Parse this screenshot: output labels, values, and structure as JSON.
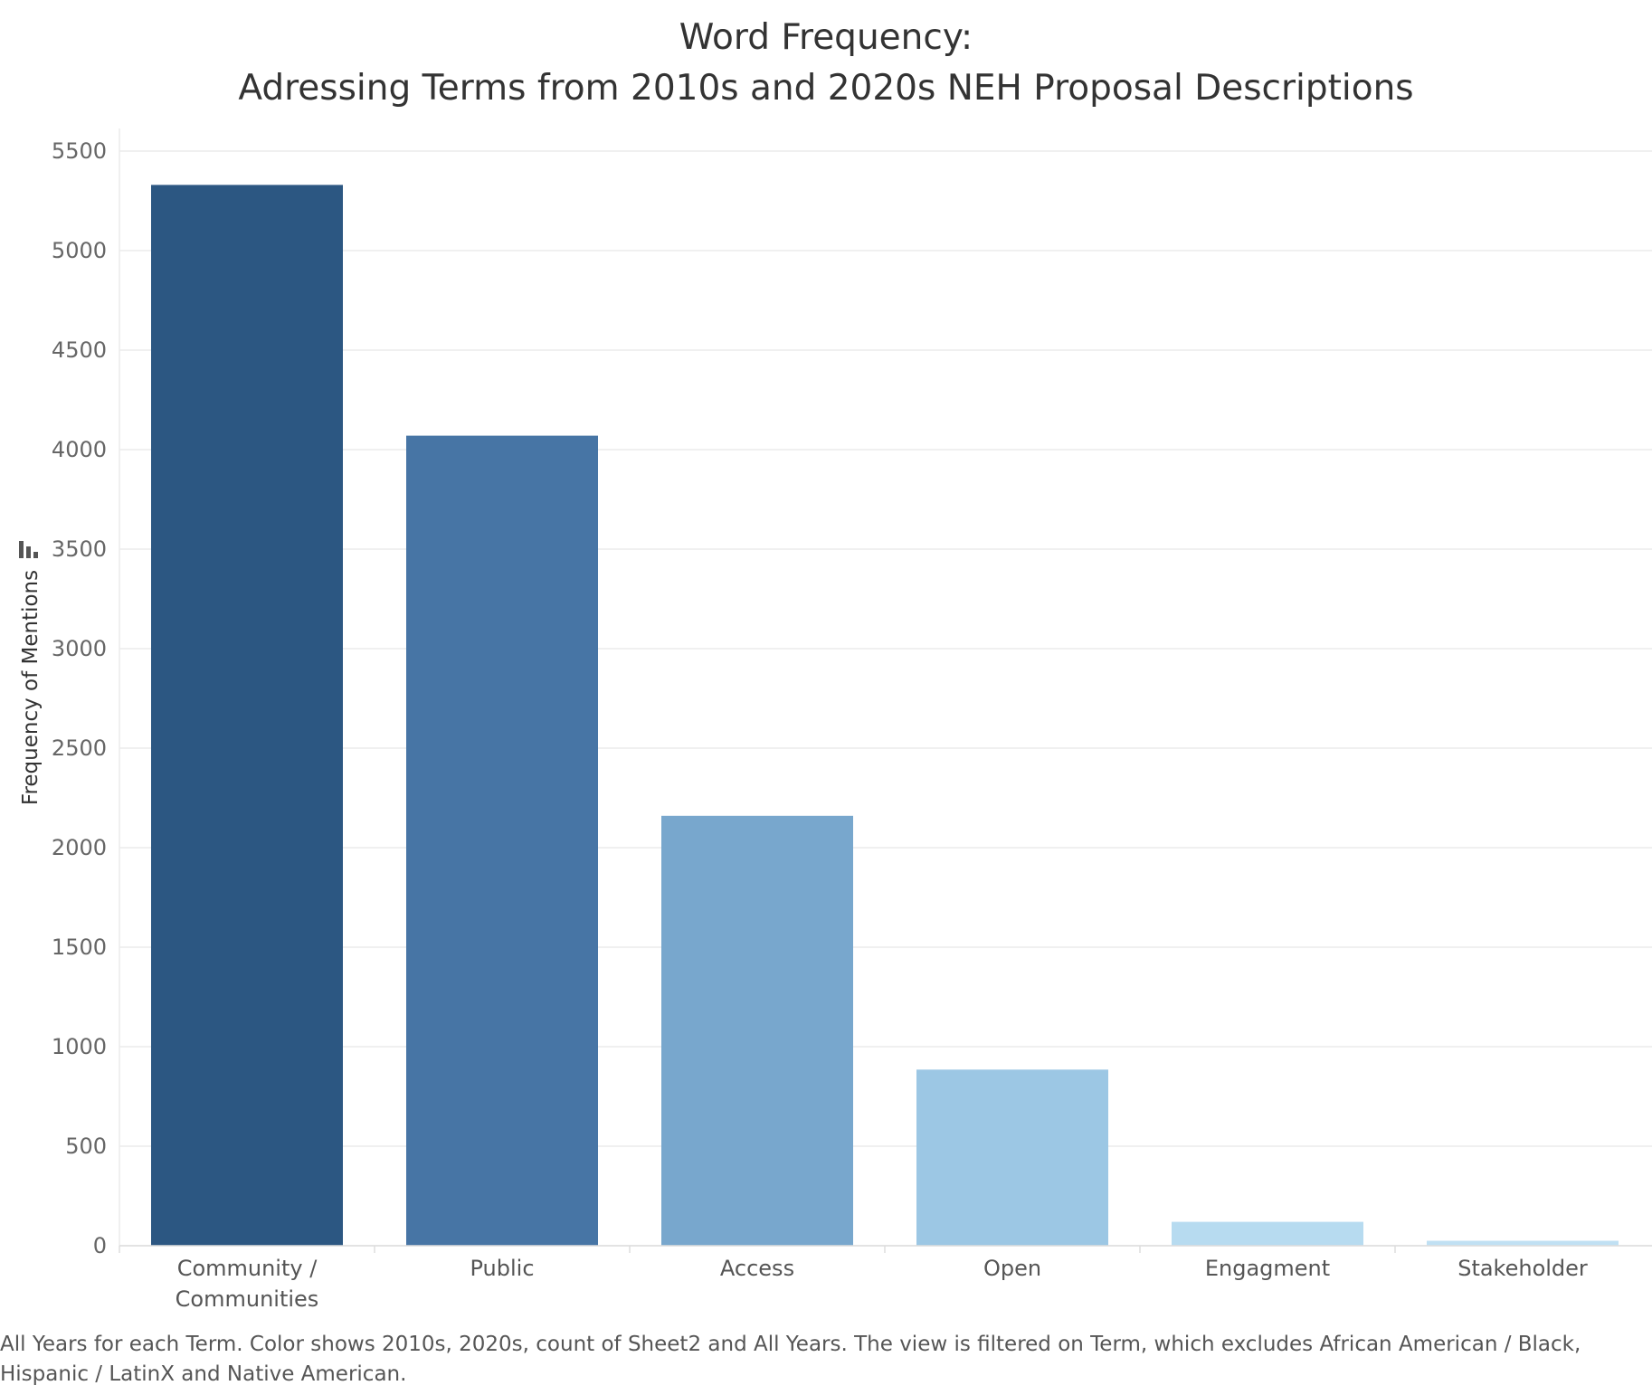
{
  "chart_data": {
    "type": "bar",
    "title_lines": [
      "Word Frequency:",
      "Adressing Terms from 2010s and 2020s NEH Proposal Descriptions"
    ],
    "ylabel": "Frequency of Mentions",
    "xlabel": "",
    "categories": [
      [
        "Community /",
        "Communities"
      ],
      [
        "Public"
      ],
      [
        "Access"
      ],
      [
        "Open"
      ],
      [
        "Engagment"
      ],
      [
        "Stakeholder"
      ]
    ],
    "values": [
      5330,
      4070,
      2160,
      885,
      120,
      25
    ],
    "colors": [
      "#2c5782",
      "#4775a5",
      "#78a7cd",
      "#9cc7e4",
      "#b7dbf0",
      "#c0e0f3"
    ],
    "yticks": [
      0,
      500,
      1000,
      1500,
      2000,
      2500,
      3000,
      3500,
      4000,
      4500,
      5000,
      5500
    ],
    "ylim": [
      0,
      5600
    ],
    "grid": true,
    "legend": "none"
  },
  "caption": "All Years for each Term.  Color shows 2010s, 2020s, count of Sheet2 and All Years. The view is filtered on Term, which excludes African American / Black, Hispanic / LatinX and Native American."
}
